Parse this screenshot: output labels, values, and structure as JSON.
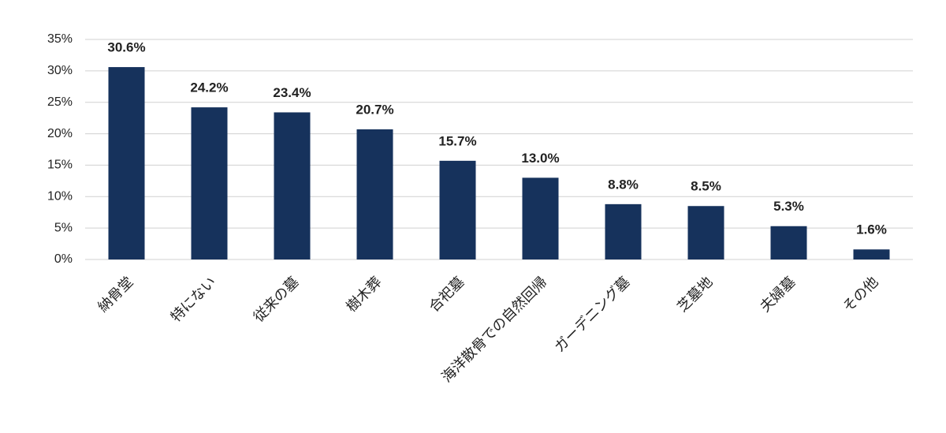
{
  "chart_data": {
    "type": "bar",
    "categories": [
      "納骨堂",
      "特にない",
      "従来の墓",
      "樹木葬",
      "合祀墓",
      "海洋散骨での自然回帰",
      "ガーデニング墓",
      "芝墓地",
      "夫婦墓",
      "その他"
    ],
    "values": [
      30.6,
      24.2,
      23.4,
      20.7,
      15.7,
      13.0,
      8.8,
      8.5,
      5.3,
      1.6
    ],
    "value_labels": [
      "30.6%",
      "24.2%",
      "23.4%",
      "20.7%",
      "15.7%",
      "13.0%",
      "8.8%",
      "8.5%",
      "5.3%",
      "1.6%"
    ],
    "color": "#16325c",
    "ylim": [
      0,
      35
    ],
    "yticks": [
      {
        "value": 0,
        "label": "0%"
      },
      {
        "value": 5,
        "label": "5%"
      },
      {
        "value": 10,
        "label": "10%"
      },
      {
        "value": 15,
        "label": "15%"
      },
      {
        "value": 20,
        "label": "20%"
      },
      {
        "value": 25,
        "label": "25%"
      },
      {
        "value": 30,
        "label": "30%"
      },
      {
        "value": 35,
        "label": "35%"
      }
    ],
    "grid": true
  }
}
